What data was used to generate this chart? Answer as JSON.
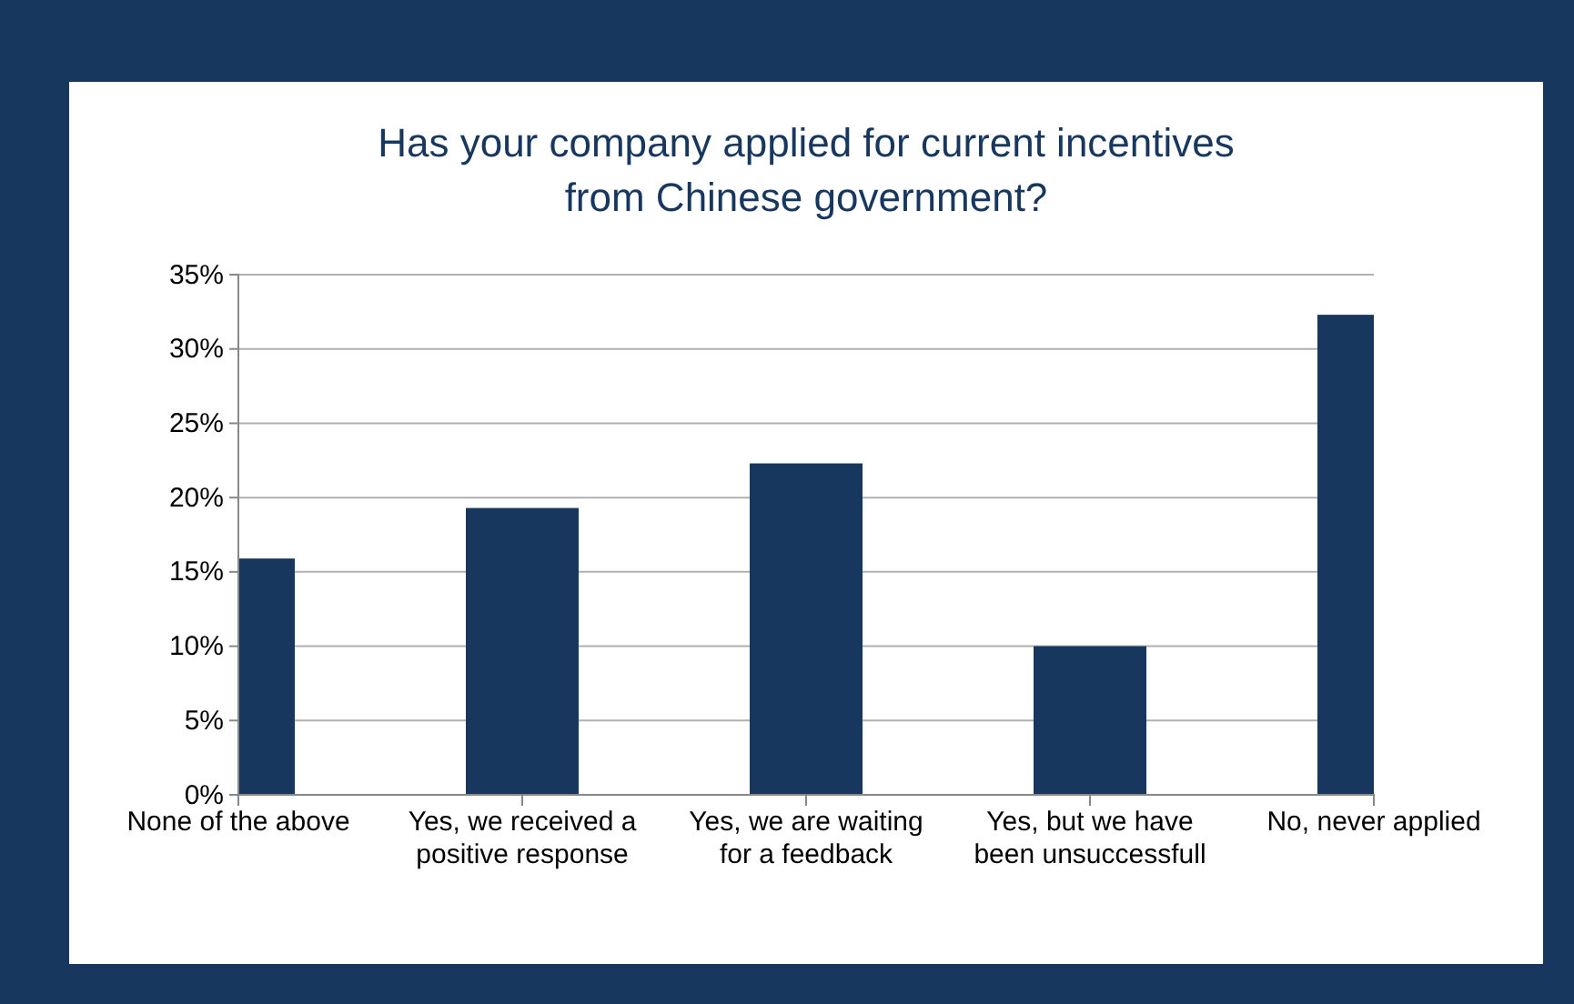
{
  "chart_data": {
    "type": "bar",
    "title": "Has your company applied for current incentives from Chinese government?",
    "categories": [
      "None of the above",
      "Yes, we received a positive response",
      "Yes, we are waiting for a feedback",
      "Yes, but we have been unsuccessfull",
      "No, never applied"
    ],
    "values": [
      15.9,
      19.3,
      22.3,
      10.0,
      32.3
    ],
    "color": "#17375e",
    "ylim": [
      0,
      35
    ],
    "yticks": [
      {
        "value": 0,
        "label": "0%"
      },
      {
        "value": 5,
        "label": "5%"
      },
      {
        "value": 10,
        "label": "10%"
      },
      {
        "value": 15,
        "label": "15%"
      },
      {
        "value": 20,
        "label": "20%"
      },
      {
        "value": 25,
        "label": "25%"
      },
      {
        "value": 30,
        "label": "30%"
      },
      {
        "value": 35,
        "label": "35%"
      }
    ],
    "grid": "y"
  }
}
